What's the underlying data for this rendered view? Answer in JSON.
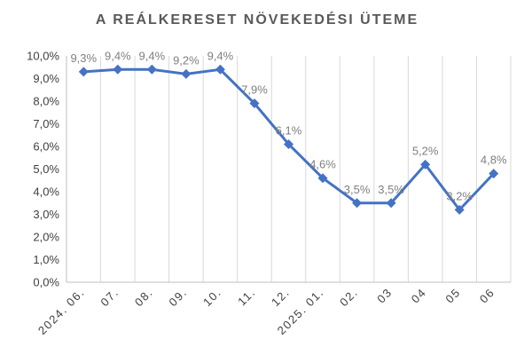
{
  "chart_data": {
    "type": "line",
    "title": "A REÁLKERESET NÖVEKEDÉSI ÜTEME",
    "categories": [
      "2024. 06.",
      "07.",
      "08.",
      "09.",
      "10.",
      "11.",
      "12.",
      "2025. 01.",
      "02.",
      "03",
      "04",
      "05",
      "06"
    ],
    "series": [
      {
        "values": [
          9.3,
          9.4,
          9.4,
          9.2,
          9.4,
          7.9,
          6.1,
          4.6,
          3.5,
          3.5,
          5.2,
          3.2,
          4.8
        ],
        "data_labels": [
          "9,3%",
          "9,4%",
          "9,4%",
          "9,2%",
          "9,4%",
          "7,9%",
          "6,1%",
          "4,6%",
          "3,5%",
          "3,5%",
          "5,2%",
          "3,2%",
          "4,8%"
        ],
        "color": "#4472c4",
        "marker": "diamond"
      }
    ],
    "ylim": [
      0,
      10
    ],
    "yticks": [
      0,
      1,
      2,
      3,
      4,
      5,
      6,
      7,
      8,
      9,
      10
    ],
    "ytick_labels": [
      "0,0%",
      "1,0%",
      "2,0%",
      "3,0%",
      "4,0%",
      "5,0%",
      "6,0%",
      "7,0%",
      "8,0%",
      "9,0%",
      "10,0%"
    ],
    "grid": "vertical",
    "legend": "none"
  }
}
